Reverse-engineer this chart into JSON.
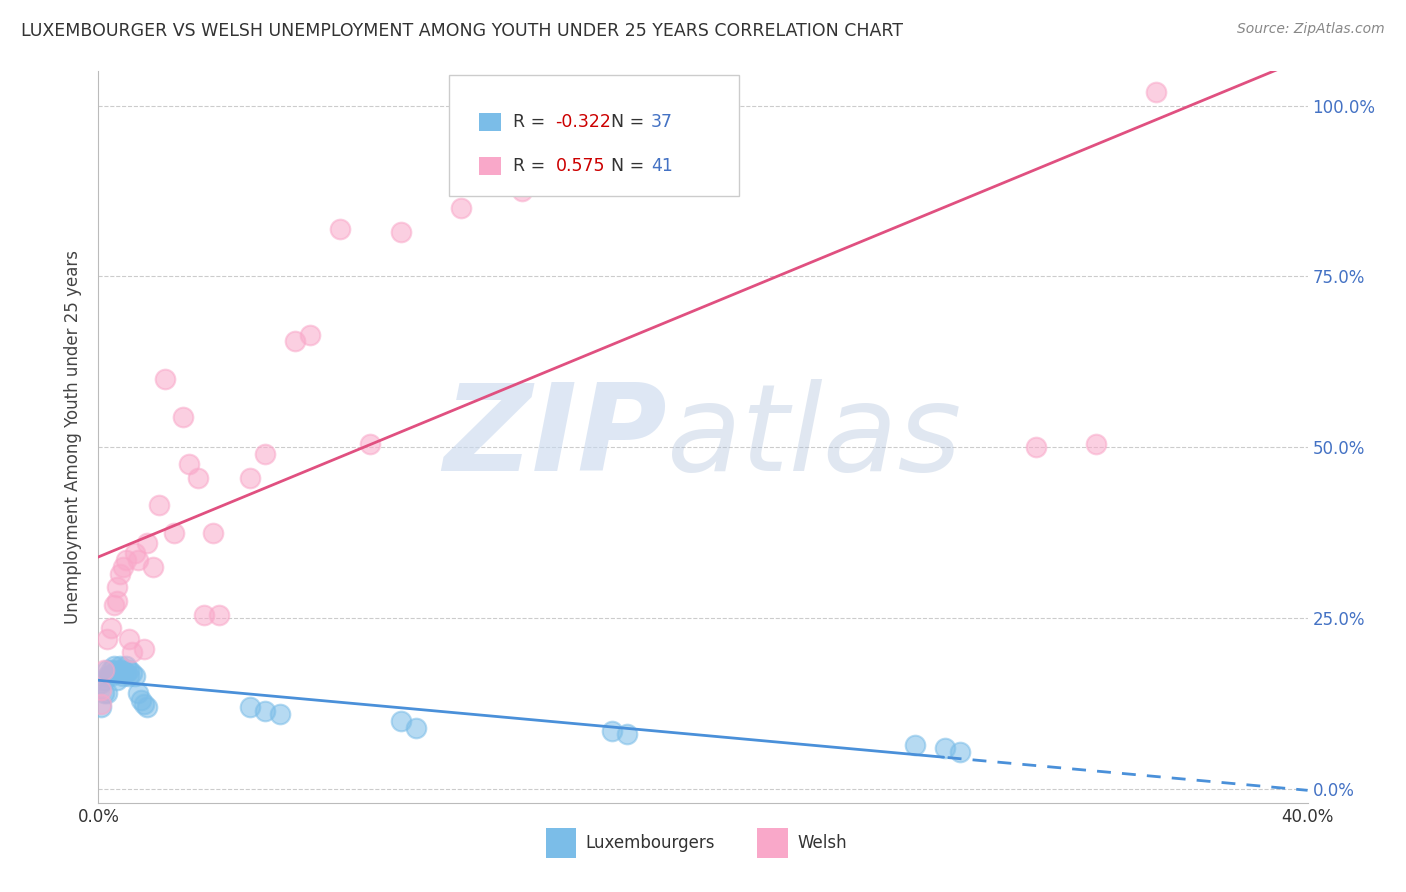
{
  "title": "LUXEMBOURGER VS WELSH UNEMPLOYMENT AMONG YOUTH UNDER 25 YEARS CORRELATION CHART",
  "source": "Source: ZipAtlas.com",
  "ylabel": "Unemployment Among Youth under 25 years",
  "xlim": [
    0.0,
    0.4
  ],
  "ylim": [
    -0.02,
    1.05
  ],
  "ytick_labels_right": [
    "0.0%",
    "25.0%",
    "50.0%",
    "75.0%",
    "100.0%"
  ],
  "ytick_positions_right": [
    0.0,
    0.25,
    0.5,
    0.75,
    1.0
  ],
  "R_lux": -0.322,
  "N_lux": 37,
  "R_welsh": 0.575,
  "N_welsh": 41,
  "color_lux": "#7bbde8",
  "color_welsh": "#f9a8c9",
  "line_color_lux": "#4a90d9",
  "line_color_welsh": "#e05080",
  "background_color": "#ffffff",
  "lux_x": [
    0.001,
    0.001,
    0.002,
    0.002,
    0.003,
    0.003,
    0.003,
    0.004,
    0.004,
    0.005,
    0.005,
    0.006,
    0.006,
    0.007,
    0.007,
    0.008,
    0.008,
    0.009,
    0.009,
    0.01,
    0.01,
    0.011,
    0.012,
    0.013,
    0.014,
    0.015,
    0.016,
    0.05,
    0.055,
    0.06,
    0.1,
    0.105,
    0.17,
    0.175,
    0.27,
    0.28,
    0.285
  ],
  "lux_y": [
    0.155,
    0.12,
    0.16,
    0.14,
    0.175,
    0.165,
    0.14,
    0.175,
    0.165,
    0.18,
    0.17,
    0.175,
    0.16,
    0.18,
    0.17,
    0.175,
    0.165,
    0.18,
    0.17,
    0.175,
    0.165,
    0.17,
    0.165,
    0.14,
    0.13,
    0.125,
    0.12,
    0.12,
    0.115,
    0.11,
    0.1,
    0.09,
    0.085,
    0.08,
    0.065,
    0.06,
    0.055
  ],
  "welsh_x": [
    0.001,
    0.001,
    0.002,
    0.003,
    0.004,
    0.005,
    0.006,
    0.006,
    0.007,
    0.008,
    0.009,
    0.01,
    0.011,
    0.012,
    0.013,
    0.015,
    0.016,
    0.018,
    0.02,
    0.022,
    0.025,
    0.028,
    0.03,
    0.033,
    0.035,
    0.038,
    0.04,
    0.05,
    0.055,
    0.065,
    0.07,
    0.08,
    0.09,
    0.1,
    0.12,
    0.14,
    0.16,
    0.18,
    0.31,
    0.33,
    0.35
  ],
  "welsh_y": [
    0.145,
    0.125,
    0.175,
    0.22,
    0.235,
    0.27,
    0.295,
    0.275,
    0.315,
    0.325,
    0.335,
    0.22,
    0.2,
    0.345,
    0.335,
    0.205,
    0.36,
    0.325,
    0.415,
    0.6,
    0.375,
    0.545,
    0.475,
    0.455,
    0.255,
    0.375,
    0.255,
    0.455,
    0.49,
    0.655,
    0.665,
    0.82,
    0.505,
    0.815,
    0.85,
    0.875,
    0.945,
    0.975,
    0.5,
    0.505,
    1.02
  ]
}
